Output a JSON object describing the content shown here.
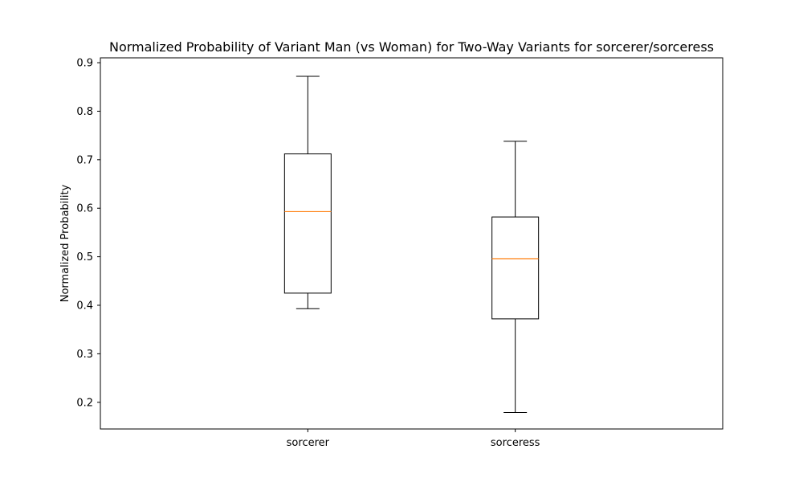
{
  "chart_data": {
    "type": "box",
    "title": "Normalized Probability of Variant Man (vs Woman) for Two-Way Variants for sorcerer/sorceress",
    "xlabel": "",
    "ylabel": "Normalized Probability",
    "ylim": [
      0.145,
      0.91
    ],
    "yticks": [
      0.2,
      0.3,
      0.4,
      0.5,
      0.6,
      0.7,
      0.8,
      0.9
    ],
    "ytick_labels": [
      "0.2",
      "0.3",
      "0.4",
      "0.5",
      "0.6",
      "0.7",
      "0.8",
      "0.9"
    ],
    "grid": false,
    "categories": [
      "sorcerer",
      "sorceress"
    ],
    "boxes": [
      {
        "category": "sorcerer",
        "whisker_low": 0.393,
        "q1": 0.425,
        "median": 0.593,
        "q3": 0.712,
        "whisker_high": 0.872
      },
      {
        "category": "sorceress",
        "whisker_low": 0.179,
        "q1": 0.372,
        "median": 0.496,
        "q3": 0.582,
        "whisker_high": 0.738
      }
    ],
    "colors": {
      "box": "#000000",
      "median": "#ff7f0e",
      "whisker": "#000000",
      "axes": "#000000",
      "background": "#ffffff"
    }
  }
}
